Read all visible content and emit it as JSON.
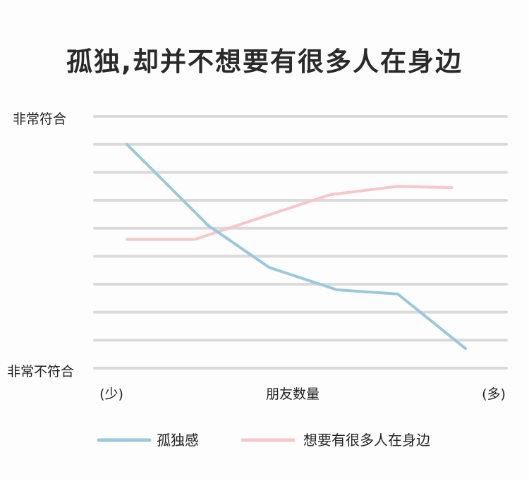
{
  "chart_data": {
    "type": "line",
    "title": "孤独,却并不想要有很多人在身边",
    "xlabel": "朋友数量",
    "x_min_label": "(少)",
    "x_max_label": "(多)",
    "y_max_label": "非常符合",
    "y_min_label": "非常不符合",
    "x": [
      1,
      2,
      3,
      4,
      5,
      6
    ],
    "xlim": [
      1,
      6
    ],
    "ylim": [
      0,
      9
    ],
    "grid": true,
    "legend_position": "bottom",
    "series": [
      {
        "name": "孤独感",
        "color": "#9ac8dc",
        "x": [
          1,
          2.2,
          3.1,
          4.1,
          5.0,
          6.0
        ],
        "values": [
          8.0,
          5.1,
          3.6,
          2.8,
          2.65,
          0.7
        ]
      },
      {
        "name": "想要有很多人在身边",
        "color": "#f6c6c8",
        "x": [
          1,
          2.0,
          3.0,
          4.0,
          5.0,
          5.8
        ],
        "values": [
          4.6,
          4.6,
          5.4,
          6.2,
          6.5,
          6.45
        ]
      }
    ]
  }
}
